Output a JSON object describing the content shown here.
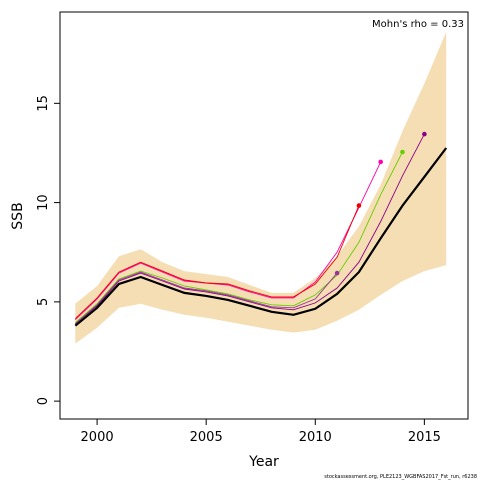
{
  "chart_data": {
    "type": "line",
    "xlabel": "Year",
    "ylabel": "SSB",
    "xlim": [
      1998.3,
      2017.0
    ],
    "ylim": [
      -0.9,
      19.6
    ],
    "xticks": [
      2000,
      2005,
      2010,
      2015
    ],
    "yticks": [
      0,
      5,
      10,
      15
    ],
    "grid": false,
    "annotation": "Mohn's rho = 0.33",
    "footer": "stockassessment.org, PLE2123_WGBFAS2017_Fst_run, r6238",
    "band": {
      "color": "#f5deb3",
      "x": [
        1999,
        2000,
        2001,
        2002,
        2003,
        2004,
        2005,
        2006,
        2007,
        2008,
        2009,
        2010,
        2011,
        2012,
        2013,
        2014,
        2015,
        2016
      ],
      "lower": [
        2.9,
        3.7,
        4.7,
        4.9,
        4.6,
        4.35,
        4.2,
        4.0,
        3.8,
        3.6,
        3.45,
        3.6,
        4.05,
        4.6,
        5.35,
        6.05,
        6.55,
        6.85
      ],
      "upper": [
        4.9,
        5.8,
        7.3,
        7.65,
        7.0,
        6.55,
        6.4,
        6.25,
        5.85,
        5.45,
        5.45,
        6.2,
        7.3,
        8.8,
        10.9,
        13.6,
        16.0,
        18.6
      ]
    },
    "main_series": {
      "color": "#000000",
      "x": [
        1999,
        2000,
        2001,
        2002,
        2003,
        2004,
        2005,
        2006,
        2007,
        2008,
        2009,
        2010,
        2011,
        2012,
        2013,
        2014,
        2015,
        2016
      ],
      "values": [
        3.8,
        4.7,
        5.9,
        6.25,
        5.85,
        5.45,
        5.3,
        5.1,
        4.8,
        4.5,
        4.35,
        4.65,
        5.4,
        6.5,
        8.2,
        9.85,
        11.3,
        12.75
      ]
    },
    "peels": [
      {
        "color": "#8b008b",
        "x": [
          1999,
          2000,
          2001,
          2002,
          2003,
          2004,
          2005,
          2006,
          2007,
          2008,
          2009,
          2010,
          2011,
          2012,
          2013,
          2014,
          2015
        ],
        "values": [
          3.9,
          4.8,
          6.05,
          6.45,
          6.05,
          5.65,
          5.5,
          5.3,
          5.0,
          4.7,
          4.6,
          4.95,
          5.7,
          7.0,
          9.05,
          11.35,
          13.45
        ]
      },
      {
        "color": "#66cd00",
        "x": [
          1999,
          2000,
          2001,
          2002,
          2003,
          2004,
          2005,
          2006,
          2007,
          2008,
          2009,
          2010,
          2011,
          2012,
          2013,
          2014
        ],
        "values": [
          3.95,
          4.9,
          6.15,
          6.55,
          6.2,
          5.8,
          5.6,
          5.4,
          5.1,
          4.85,
          4.8,
          5.35,
          6.35,
          8.0,
          10.4,
          12.55
        ]
      },
      {
        "color": "#ff00aa",
        "x": [
          1999,
          2000,
          2001,
          2002,
          2003,
          2004,
          2005,
          2006,
          2007,
          2008,
          2009,
          2010,
          2011,
          2012,
          2013
        ],
        "values": [
          4.1,
          5.15,
          6.45,
          6.95,
          6.5,
          6.05,
          5.95,
          5.85,
          5.5,
          5.2,
          5.2,
          6.0,
          7.5,
          9.75,
          12.05
        ]
      },
      {
        "color": "#ee0000",
        "x": [
          1999,
          2000,
          2001,
          2002,
          2003,
          2004,
          2005,
          2006,
          2007,
          2008,
          2009,
          2010,
          2011,
          2012
        ],
        "values": [
          4.15,
          5.2,
          6.5,
          7.0,
          6.55,
          6.1,
          5.95,
          5.9,
          5.55,
          5.25,
          5.25,
          5.9,
          7.25,
          9.85
        ]
      },
      {
        "color": "#993399",
        "x": [
          1999,
          2000,
          2001,
          2002,
          2003,
          2004,
          2005,
          2006,
          2007,
          2008,
          2009,
          2010,
          2011
        ],
        "values": [
          3.9,
          4.85,
          6.1,
          6.5,
          6.1,
          5.7,
          5.55,
          5.35,
          5.05,
          4.75,
          4.7,
          5.15,
          6.45
        ]
      }
    ]
  }
}
